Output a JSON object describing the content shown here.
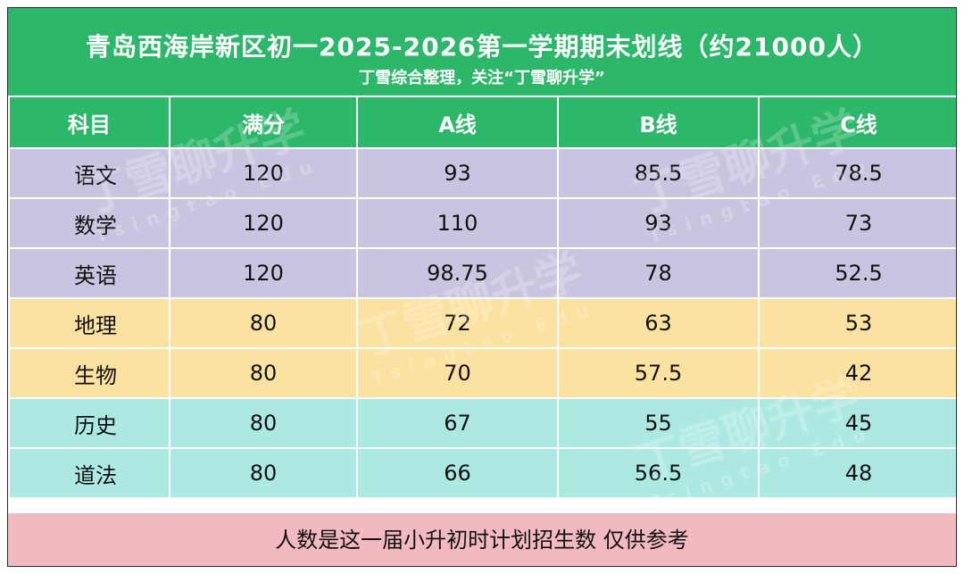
{
  "header": {
    "title": "青岛西海岸新区初一2025-2026第一学期期末划线（约21000人）",
    "subtitle": "丁雪综合整理，关注“丁雪聊升学”"
  },
  "table": {
    "columns": [
      "科目",
      "满分",
      "A线",
      "B线",
      "C线"
    ],
    "rows": [
      {
        "subject": "语文",
        "full": "120",
        "a": "93",
        "b": "85.5",
        "c": "78.5",
        "group": "purple"
      },
      {
        "subject": "数学",
        "full": "120",
        "a": "110",
        "b": "93",
        "c": "73",
        "group": "purple"
      },
      {
        "subject": "英语",
        "full": "120",
        "a": "98.75",
        "b": "78",
        "c": "52.5",
        "group": "purple"
      },
      {
        "subject": "地理",
        "full": "80",
        "a": "72",
        "b": "63",
        "c": "53",
        "group": "yellow"
      },
      {
        "subject": "生物",
        "full": "80",
        "a": "70",
        "b": "57.5",
        "c": "42",
        "group": "yellow"
      },
      {
        "subject": "历史",
        "full": "80",
        "a": "67",
        "b": "55",
        "c": "45",
        "group": "teal"
      },
      {
        "subject": "道法",
        "full": "80",
        "a": "66",
        "b": "56.5",
        "c": "48",
        "group": "teal"
      }
    ]
  },
  "footer": {
    "note": "人数是这一届小升初时计划招生数 仅供参考"
  },
  "watermark": {
    "text": "丁雪聊升学",
    "sub": "Tsingtao Edu"
  },
  "colors": {
    "header_green": "#2db76a",
    "purple_rows": "#cbc4e0",
    "yellow_rows": "#fbe2a0",
    "teal_rows": "#ace9e1",
    "footer_pink": "#f3b9c0"
  }
}
